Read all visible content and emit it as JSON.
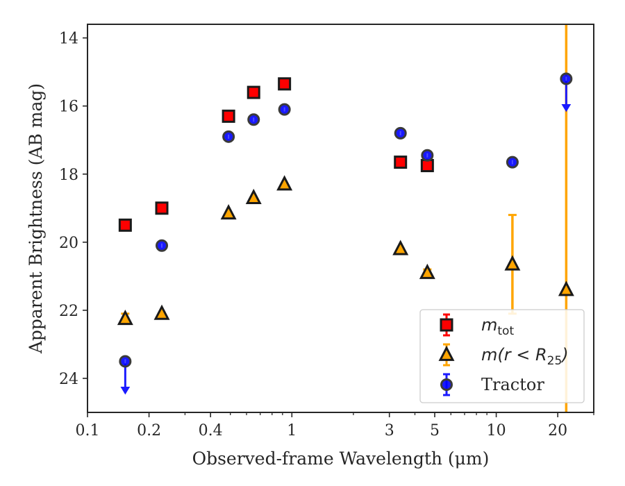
{
  "chart_data": {
    "type": "scatter",
    "xscale": "log",
    "xlim": [
      0.1,
      30
    ],
    "ylim": [
      25,
      13.6
    ],
    "y_inverted": true,
    "xlabel": "Observed-frame Wavelength (μm)",
    "ylabel": "Apparent Brightness (AB mag)",
    "x_major_ticks": [
      0.1,
      0.2,
      0.4,
      1,
      3,
      5,
      10,
      20
    ],
    "x_tick_labels": [
      "0.1",
      "0.2",
      "0.4",
      "1",
      "3",
      "5",
      "10",
      "20"
    ],
    "y_ticks": [
      14,
      16,
      18,
      20,
      22,
      24
    ],
    "y_tick_labels": [
      "14",
      "16",
      "18",
      "20",
      "22",
      "24"
    ],
    "grid": false,
    "legend_position": "lower right",
    "series": [
      {
        "name": "m_tot",
        "marker": "square",
        "color": "#ff0000",
        "edgecolor": "#1a1a1a",
        "errorcolor": "#ff0000",
        "points": [
          {
            "x": 0.153,
            "y": 19.5
          },
          {
            "x": 0.231,
            "y": 19.0
          },
          {
            "x": 0.49,
            "y": 16.3
          },
          {
            "x": 0.65,
            "y": 15.6
          },
          {
            "x": 0.92,
            "y": 15.35
          },
          {
            "x": 3.4,
            "y": 17.65
          },
          {
            "x": 4.6,
            "y": 17.75
          }
        ]
      },
      {
        "name": "m(r < R25)",
        "marker": "triangle",
        "color": "#ffa500",
        "edgecolor": "#1a1a1a",
        "errorcolor": "#ffa500",
        "points": [
          {
            "x": 0.153,
            "y": 22.25,
            "err": 0.15
          },
          {
            "x": 0.231,
            "y": 22.1
          },
          {
            "x": 0.49,
            "y": 19.15
          },
          {
            "x": 0.65,
            "y": 18.7
          },
          {
            "x": 0.92,
            "y": 18.3
          },
          {
            "x": 3.4,
            "y": 20.2
          },
          {
            "x": 4.6,
            "y": 20.9,
            "err": 0.1
          },
          {
            "x": 12.0,
            "y": 20.65,
            "err": 1.45
          },
          {
            "x": 22.0,
            "y": 21.4,
            "err": 12
          }
        ]
      },
      {
        "name": "Tractor",
        "marker": "circle",
        "color": "#0000ff",
        "edgecolor": "#3a3a3a",
        "errorcolor": "#1a1aff",
        "points": [
          {
            "x": 0.153,
            "y": 23.5,
            "upper_limit": true
          },
          {
            "x": 0.231,
            "y": 20.1
          },
          {
            "x": 0.49,
            "y": 16.9
          },
          {
            "x": 0.65,
            "y": 16.4
          },
          {
            "x": 0.92,
            "y": 16.1
          },
          {
            "x": 3.4,
            "y": 16.8
          },
          {
            "x": 4.6,
            "y": 17.45
          },
          {
            "x": 12.0,
            "y": 17.65
          },
          {
            "x": 22.0,
            "y": 15.2,
            "upper_limit": true
          }
        ]
      }
    ],
    "legend": [
      {
        "main": "m",
        "sub": "tot",
        "suffix": ""
      },
      {
        "main": "m(r < R",
        "sub": "25",
        "suffix": ")"
      },
      {
        "main": "Tractor",
        "sub": "",
        "suffix": ""
      }
    ]
  }
}
